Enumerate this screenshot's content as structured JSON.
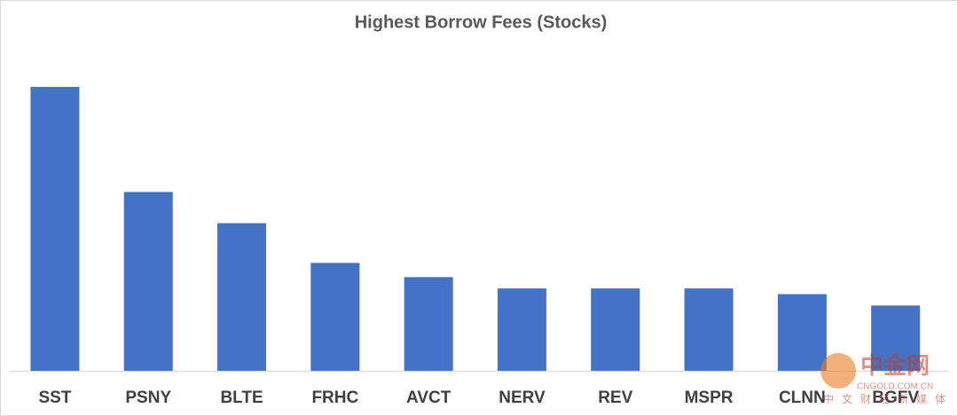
{
  "chart_data": {
    "type": "bar",
    "title": "Highest Borrow Fees (Stocks)",
    "categories": [
      "SST",
      "PSNY",
      "BLTE",
      "FRHC",
      "AVCT",
      "NERV",
      "REV",
      "MSPR",
      "CLNN",
      "BGFV"
    ],
    "values": [
      100,
      63,
      52,
      38,
      33,
      29,
      29,
      29,
      27,
      23
    ],
    "color": "#4472c4",
    "ylim": [
      0,
      100
    ]
  },
  "watermark": {
    "brand": "中金网",
    "site": "CNGOLD.COM.CN",
    "slogan": "中文财经新媒体"
  }
}
